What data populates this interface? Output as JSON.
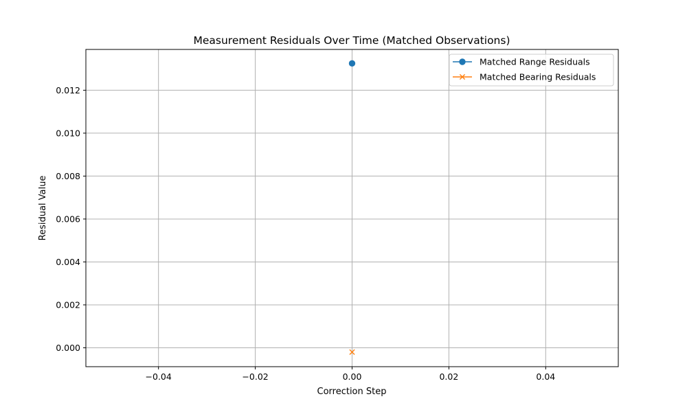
{
  "chart_data": {
    "type": "line",
    "title": "Measurement Residuals Over Time (Matched Observations)",
    "xlabel": "Correction Step",
    "ylabel": "Residual Value",
    "xlim": [
      -0.055,
      0.055
    ],
    "ylim": [
      -0.00088,
      0.0139
    ],
    "x_ticks": [
      -0.04,
      -0.02,
      0.0,
      0.02,
      0.04
    ],
    "x_tick_labels": [
      "−0.04",
      "−0.02",
      "0.00",
      "0.02",
      "0.04"
    ],
    "y_ticks": [
      0.0,
      0.002,
      0.004,
      0.006,
      0.008,
      0.01,
      0.012
    ],
    "y_tick_labels": [
      "0.000",
      "0.002",
      "0.004",
      "0.006",
      "0.008",
      "0.010",
      "0.012"
    ],
    "grid": true,
    "legend_position": "top-right",
    "series": [
      {
        "name": "Matched Range Residuals",
        "marker": "circle",
        "color": "#1f77b4",
        "x": [
          0
        ],
        "y": [
          0.01325
        ]
      },
      {
        "name": "Matched Bearing Residuals",
        "marker": "x",
        "color": "#ff7f0e",
        "x": [
          0
        ],
        "y": [
          -0.0002
        ]
      }
    ]
  }
}
